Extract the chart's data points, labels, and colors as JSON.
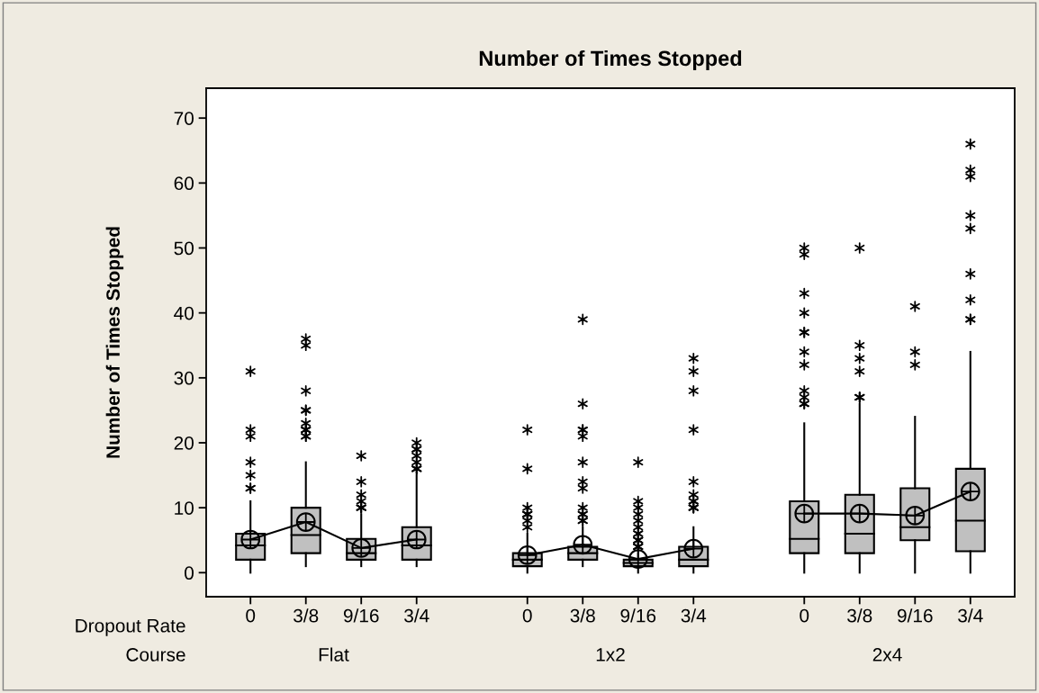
{
  "chart_data": {
    "type": "box",
    "title": "Number of Times Stopped",
    "ylabel": "Number of Times Stopped",
    "categories": [
      "0",
      "3/8",
      "9/16",
      "3/4",
      null,
      "0",
      "3/8",
      "9/16",
      "3/4",
      null,
      "0",
      "3/8",
      "9/16",
      "3/4"
    ],
    "annotations": [
      "Dropout Rate",
      "Course",
      "Flat",
      "1x2",
      "2x4"
    ],
    "color": "#c0c0c0",
    "boxes": [
      {
        "low": 0,
        "q1": 2,
        "median": 4.2,
        "q3": 6,
        "high": 11,
        "mean": 5.1,
        "outliers": [
          31,
          22,
          21,
          17,
          15,
          13,
          13
        ]
      },
      {
        "low": 1,
        "q1": 3,
        "median": 5.8,
        "q3": 10,
        "high": 17,
        "mean": 7.8,
        "outliers": [
          36,
          35,
          28,
          25,
          25,
          23,
          22,
          22,
          22,
          21,
          21
        ]
      },
      {
        "low": 1,
        "q1": 2,
        "median": 3,
        "q3": 5.2,
        "high": 9,
        "mean": 3.8,
        "outliers": [
          18,
          14,
          12,
          11,
          10,
          10,
          10
        ]
      },
      {
        "low": 1,
        "q1": 2,
        "median": 4.2,
        "q3": 7,
        "high": 15,
        "mean": 5.1,
        "outliers": [
          20,
          19,
          19,
          18,
          17,
          16,
          16,
          16
        ]
      },
      null,
      {
        "low": 0,
        "q1": 1,
        "median": 2,
        "q3": 3,
        "high": 6,
        "mean": 2.7,
        "outliers": [
          22,
          16,
          10,
          9,
          9,
          9,
          8,
          7
        ]
      },
      {
        "low": 1,
        "q1": 2,
        "median": 3,
        "q3": 4,
        "high": 7,
        "mean": 4.3,
        "outliers": [
          39,
          26,
          22,
          22,
          21,
          17,
          14,
          13,
          10,
          9,
          9,
          8,
          8
        ]
      },
      {
        "low": 0,
        "q1": 1,
        "median": 1.5,
        "q3": 2,
        "high": 3,
        "mean": 2.1,
        "outliers": [
          17,
          11,
          10,
          9,
          8,
          7,
          6,
          6,
          5,
          5,
          5,
          4,
          4,
          4
        ]
      },
      {
        "low": 0,
        "q1": 1,
        "median": 2,
        "q3": 4,
        "high": 7,
        "mean": 3.7,
        "outliers": [
          33,
          31,
          28,
          22,
          14,
          12,
          11,
          11,
          10,
          10,
          10
        ]
      },
      null,
      {
        "low": 0,
        "q1": 3,
        "median": 5.2,
        "q3": 11,
        "high": 23,
        "mean": 9.1,
        "outliers": [
          50,
          49,
          43,
          40,
          37,
          37,
          34,
          32,
          28,
          27,
          26,
          26
        ]
      },
      {
        "low": 0,
        "q1": 3,
        "median": 6,
        "q3": 12,
        "high": 26,
        "mean": 9.1,
        "outliers": [
          50,
          35,
          33,
          31,
          27,
          27,
          27
        ]
      },
      {
        "low": 0,
        "q1": 5,
        "median": 7,
        "q3": 13,
        "high": 24,
        "mean": 8.8,
        "outliers": [
          41,
          34,
          32
        ]
      },
      {
        "low": 0,
        "q1": 3.3,
        "median": 8,
        "q3": 16,
        "high": 34,
        "mean": 12.5,
        "outliers": [
          66,
          62,
          61,
          55,
          53,
          46,
          42,
          39,
          39
        ]
      }
    ],
    "series": [
      {
        "type": "line",
        "color": "#000000",
        "values": [
          5.1,
          7.8,
          3.8,
          5.1,
          null,
          2.7,
          4.3,
          2.1,
          3.7,
          null,
          9.1,
          9.1,
          8.8,
          12.5
        ]
      }
    ],
    "ylim": [
      -3.7,
      74.6
    ],
    "yticks": [
      0,
      10,
      20,
      30,
      40,
      50,
      60,
      70
    ],
    "grid": false,
    "legend": false
  }
}
